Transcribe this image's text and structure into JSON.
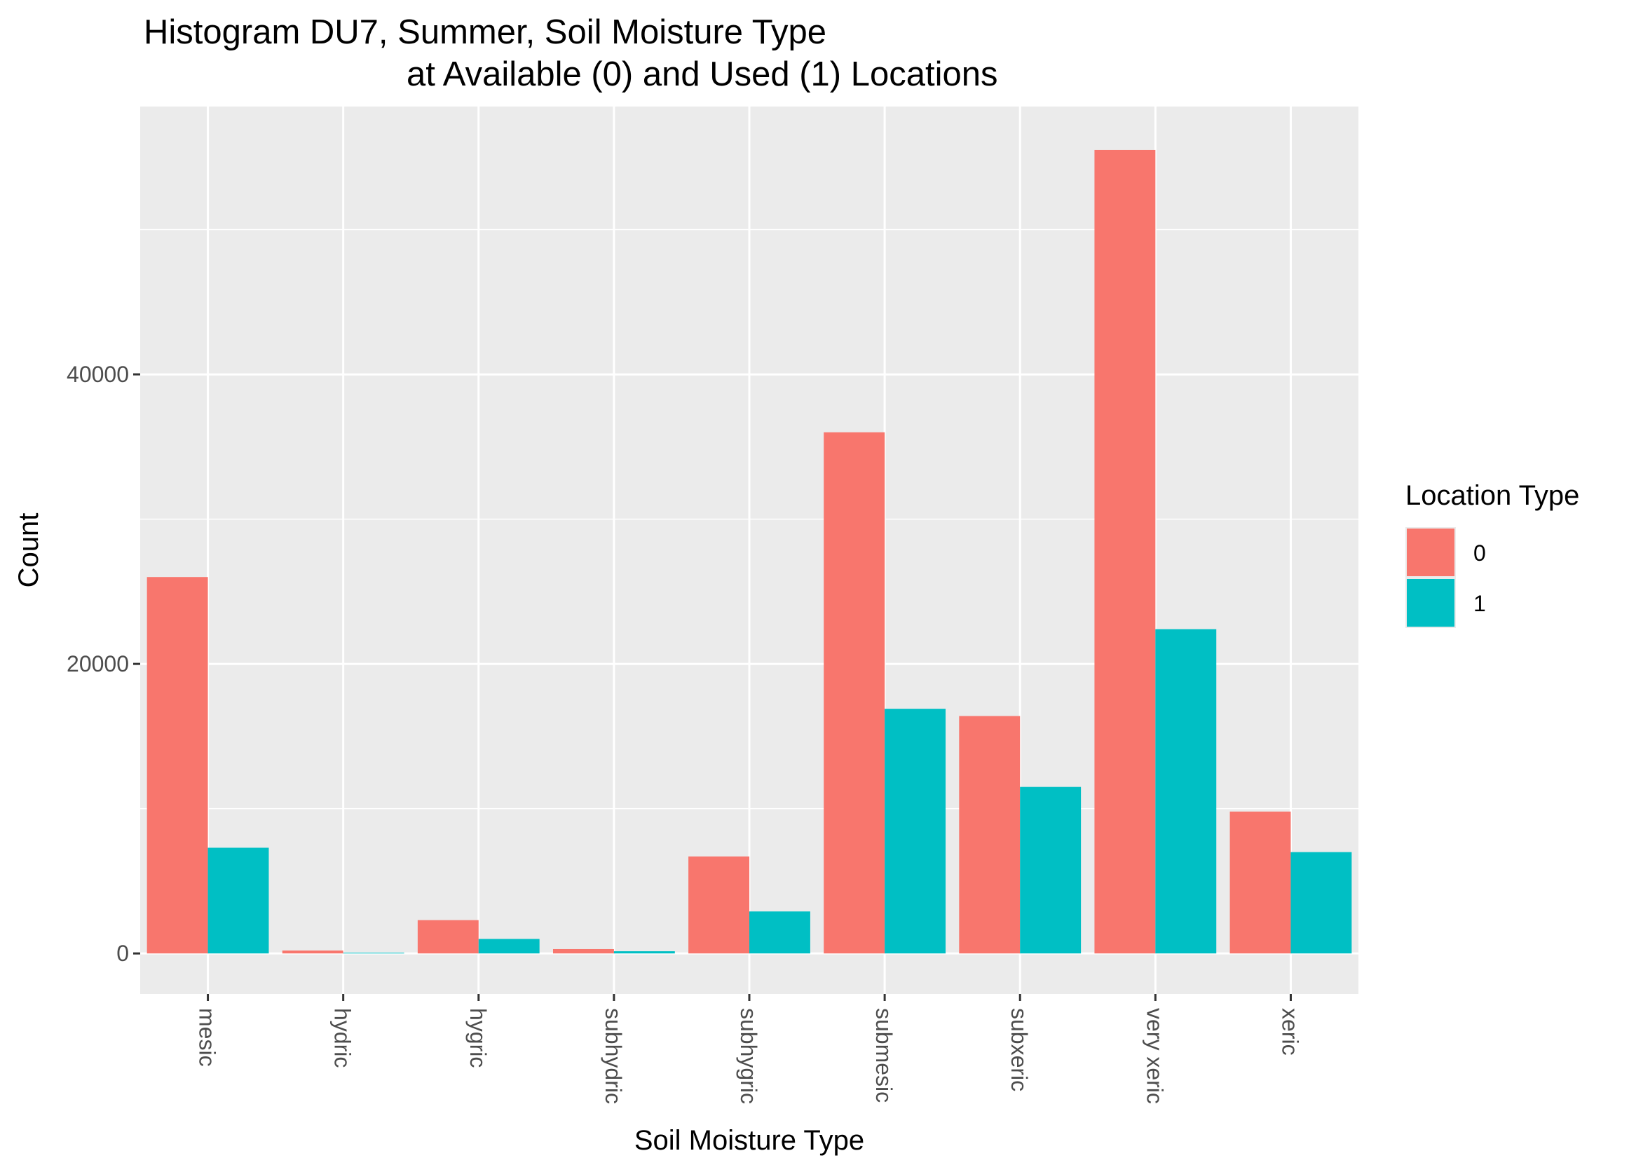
{
  "chart_data": {
    "type": "bar",
    "title_line1": "Histogram DU7, Summer, Soil Moisture Type",
    "title_line2": "at Available (0) and Used (1) Locations",
    "xlabel": "Soil Moisture Type",
    "ylabel": "Count",
    "categories": [
      "mesic",
      "hydric",
      "hygric",
      "subhydric",
      "subhygric",
      "submesic",
      "subxeric",
      "very xeric",
      "xeric"
    ],
    "series": [
      {
        "name": "0",
        "color": "#F8766D",
        "values": [
          26000,
          200,
          2300,
          300,
          6700,
          36000,
          16400,
          55500,
          9800
        ]
      },
      {
        "name": "1",
        "color": "#00BFC4",
        "values": [
          7300,
          50,
          1000,
          150,
          2900,
          16900,
          11500,
          22400,
          7000
        ]
      }
    ],
    "ylim": [
      -2800,
      58500
    ],
    "yticks": [
      0,
      20000,
      40000
    ],
    "yticks_labels": [
      "0",
      "20000",
      "40000"
    ],
    "grid": true,
    "panel_background": "#EBEBEB",
    "legend": {
      "title": "Location Type",
      "position": "right"
    }
  }
}
